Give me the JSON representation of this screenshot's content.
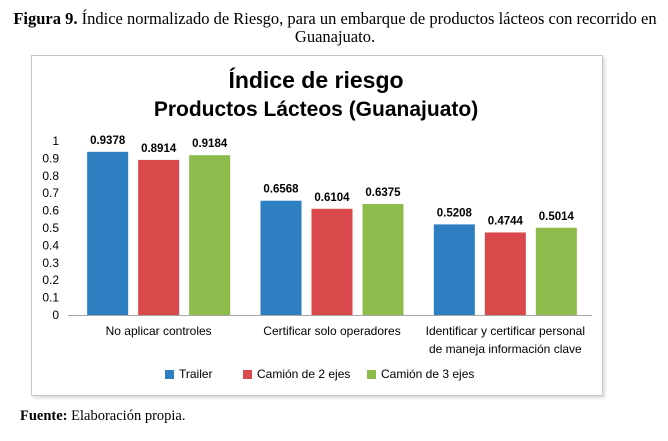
{
  "caption": {
    "label": "Figura 9.",
    "text": "Índice normalizado de Riesgo, para un embarque de productos lácteos con recorrido en Guanajuato."
  },
  "footer": {
    "label": "Fuente:",
    "text": "Elaboración  propia."
  },
  "chart_data": {
    "type": "bar",
    "title": "Índice de riesgo",
    "subtitle": "Productos Lácteos (Guanajuato)",
    "xlabel": "",
    "ylabel": "",
    "ylim": [
      0,
      1
    ],
    "yticks": [
      "0",
      "0.1",
      "0.2",
      "0.3",
      "0.4",
      "0.5",
      "0.6",
      "0.7",
      "0.8",
      "0.9",
      "1"
    ],
    "ytick_values": [
      0,
      0.1,
      0.2,
      0.3,
      0.4,
      0.5,
      0.6,
      0.7,
      0.8,
      0.9,
      1
    ],
    "grid": false,
    "legend_position": "bottom",
    "categories": [
      [
        "No aplicar controles"
      ],
      [
        "Certificar solo operadores"
      ],
      [
        "Identificar y certificar personal",
        "de maneja información clave"
      ]
    ],
    "series": [
      {
        "name": "Trailer",
        "color": "#2e7fc1",
        "values": [
          0.9378,
          0.6568,
          0.5208
        ],
        "labels": [
          "0.9378",
          "0.6568",
          "0.5208"
        ]
      },
      {
        "name": "Camión de 2 ejes",
        "color": "#d9484a",
        "values": [
          0.8914,
          0.6104,
          0.4744
        ],
        "labels": [
          "0.8914",
          "0.6104",
          "0.4744"
        ]
      },
      {
        "name": "Camión de 3 ejes",
        "color": "#8dbb4c",
        "values": [
          0.9184,
          0.6375,
          0.5014
        ],
        "labels": [
          "0.9184",
          "0.6375",
          "0.5014"
        ]
      }
    ]
  }
}
